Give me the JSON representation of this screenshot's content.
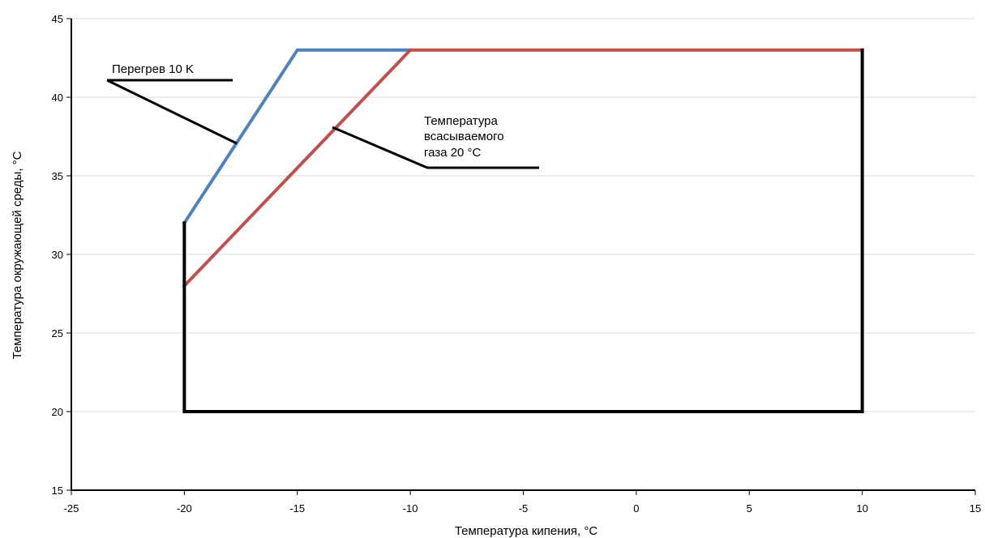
{
  "chart_data": {
    "type": "line",
    "xlabel": "Температура кипения, °C",
    "ylabel": "Температура окружающей среды, °C",
    "xlim": [
      -25,
      15
    ],
    "ylim": [
      15,
      45
    ],
    "x_ticks": [
      -25,
      -20,
      -15,
      -10,
      -5,
      0,
      5,
      10,
      15
    ],
    "y_ticks": [
      15,
      20,
      25,
      30,
      35,
      40,
      45
    ],
    "grid": true,
    "series": [
      {
        "color": "#4f81bd",
        "x": [
          -20,
          -15,
          -10
        ],
        "y": [
          32,
          43,
          43
        ]
      },
      {
        "color": "#c0504d",
        "x": [
          -20,
          -10,
          10
        ],
        "y": [
          28,
          43,
          43
        ]
      },
      {
        "color": "#000000",
        "x": [
          -20,
          -20,
          10,
          10
        ],
        "y": [
          32,
          20,
          20,
          43
        ]
      }
    ],
    "annotations": [
      {
        "lines": [
          "Перегрев 10 K"
        ]
      },
      {
        "lines": [
          "Температура",
          "всасываемого",
          "газа 20 °C"
        ]
      }
    ]
  }
}
